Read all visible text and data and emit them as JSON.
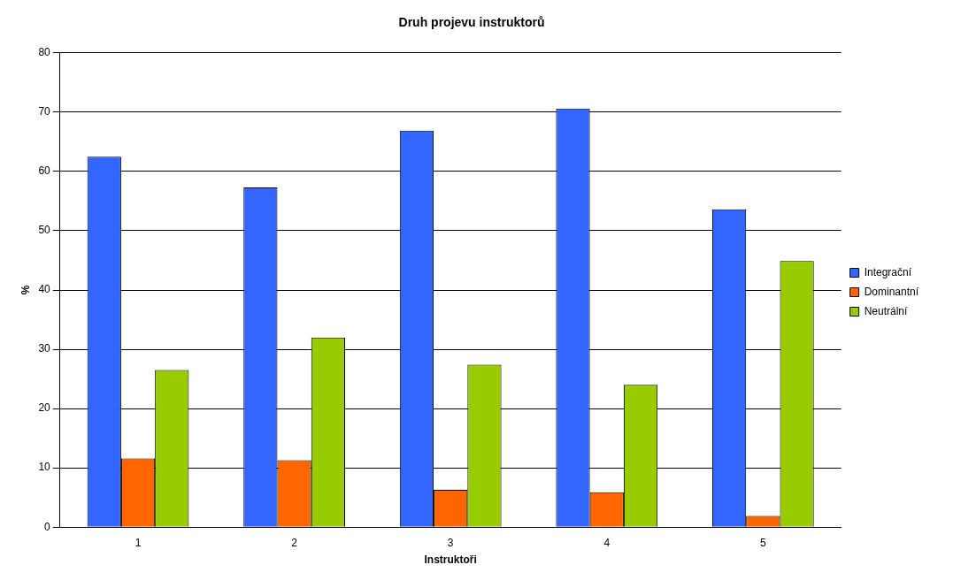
{
  "chart_data": {
    "type": "bar",
    "title": "Druh projevu instruktorů",
    "xlabel": "Instruktoři",
    "ylabel": "%",
    "categories": [
      "1",
      "2",
      "3",
      "4",
      "5"
    ],
    "series": [
      {
        "name": "Integrační",
        "color": "#3366ff",
        "values": [
          62.5,
          57.3,
          66.9,
          70.6,
          53.6
        ]
      },
      {
        "name": "Dominantní",
        "color": "#ff6600",
        "values": [
          11.6,
          11.3,
          6.3,
          5.9,
          1.9
        ]
      },
      {
        "name": "Neutrální",
        "color": "#99cc00",
        "values": [
          26.5,
          32,
          27.4,
          24,
          44.9
        ]
      }
    ],
    "ylim": [
      0,
      80
    ],
    "yticks": [
      0,
      10,
      20,
      30,
      40,
      50,
      60,
      70,
      80
    ],
    "grid": "y",
    "legend": "right"
  }
}
